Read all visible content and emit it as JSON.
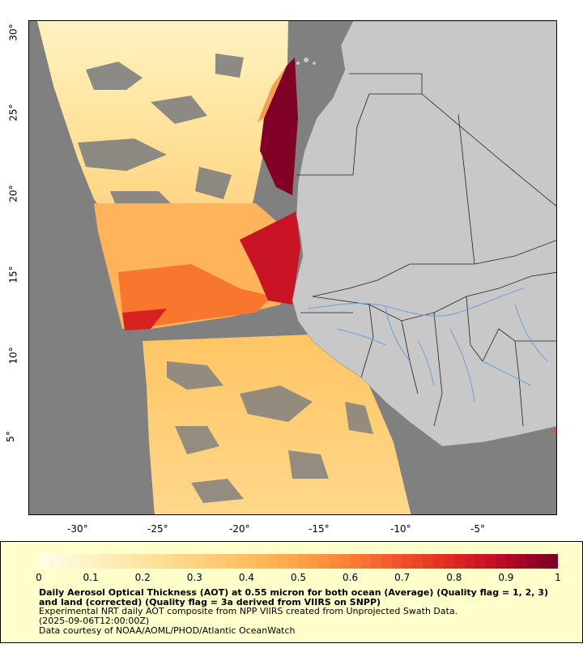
{
  "map": {
    "lat_ticks": [
      "30°",
      "25°",
      "20°",
      "15°",
      "10°",
      "5°"
    ],
    "lon_ticks": [
      "-30°",
      "-25°",
      "-20°",
      "-15°",
      "-10°",
      "-5°"
    ],
    "colors": {
      "ocean_nodata": "#808080",
      "land": "#c8c8c8",
      "rivers": "#6aa0dc",
      "borders": "#202020",
      "legend_bg": "#ffffcc"
    }
  },
  "legend": {
    "colorbar_labels": [
      "0",
      "0.1",
      "0.2",
      "0.3",
      "0.4",
      "0.5",
      "0.6",
      "0.7",
      "0.8",
      "0.9",
      "1"
    ],
    "colorbar_stops": [
      "#fffde6",
      "#fff0c0",
      "#ffe3a0",
      "#ffd080",
      "#ffbf60",
      "#ffa347",
      "#fc7f36",
      "#f4502a",
      "#df2a20",
      "#bd0a24",
      "#800026"
    ],
    "title": "Daily Aerosol Optical Thickness (AOT) at 0.55 micron for both ocean (Average) (Quality flag = 1, 2, 3) and land (corrected) (Quality flag = 3a derived from VIIRS on SNPP)",
    "subtitle": "Experimental NRT daily AOT composite from NPP VIIRS created from Unprojected Swath Data.",
    "date": "(2025-09-06T12:00:00Z)",
    "credit": "Data courtesy of NOAA/AOML/PHOD/Atlantic OceanWatch"
  }
}
